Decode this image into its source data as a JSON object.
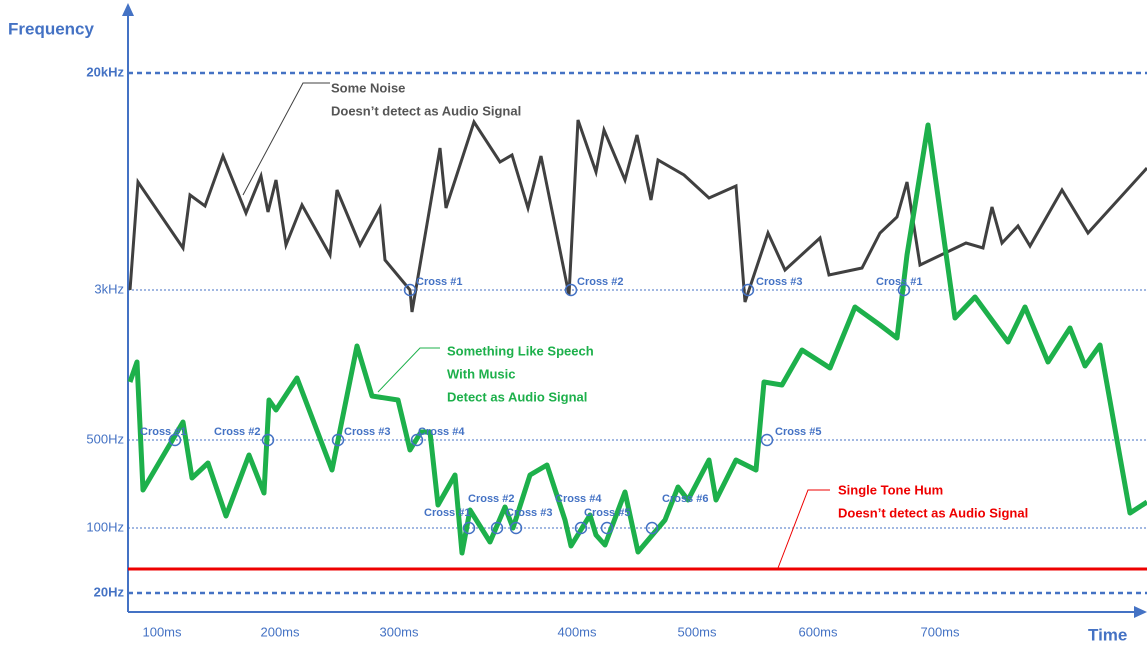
{
  "axes": {
    "y_title": "Frequency",
    "x_title": "Time",
    "y_labels": [
      "20kHz",
      "3kHz",
      "500Hz",
      "100Hz",
      "20Hz"
    ],
    "x_labels": [
      "100ms",
      "200ms",
      "300ms",
      "400ms",
      "500ms",
      "600ms",
      "700ms"
    ]
  },
  "annotations": {
    "noise": [
      "Some Noise",
      "Doesn’t detect as Audio Signal"
    ],
    "speech": [
      "Something Like Speech",
      "With Music",
      "Detect as Audio Signal"
    ],
    "hum": [
      "Single Tone Hum",
      "Doesn’t detect as Audio Signal"
    ]
  },
  "noise_crosses": [
    "Cross #1",
    "Cross #2",
    "Cross #3",
    "Cross #1"
  ],
  "speech_crosses_500": [
    "Cross #1",
    "Cross #2",
    "Cross #3",
    "Cross #4",
    "Cross #5"
  ],
  "speech_crosses_100": [
    "Cross #1",
    "Cross #2",
    "Cross #3",
    "Cross #4",
    "Cross #5",
    "Cross #6"
  ]
}
